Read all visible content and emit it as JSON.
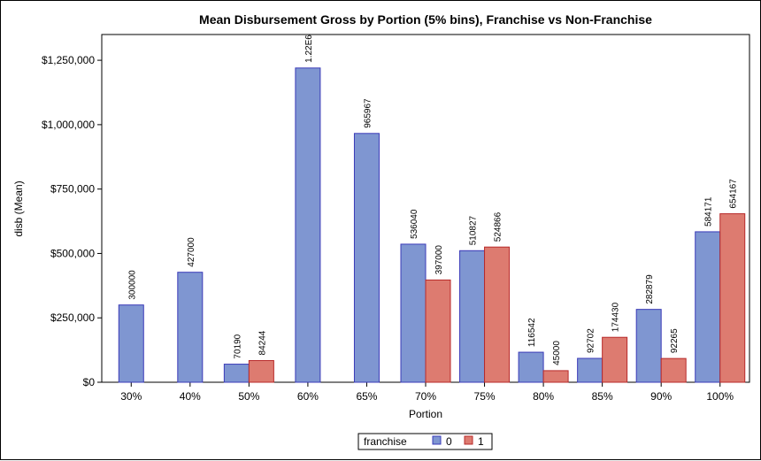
{
  "chart_data": {
    "type": "bar",
    "title": "Mean Disbursement Gross by Portion (5% bins), Franchise vs Non-Franchise",
    "xlabel": "Portion",
    "ylabel": "disb (Mean)",
    "categories": [
      "30%",
      "40%",
      "50%",
      "60%",
      "65%",
      "70%",
      "75%",
      "80%",
      "85%",
      "90%",
      "100%"
    ],
    "ylim": [
      0,
      1350000
    ],
    "yticks": [
      0,
      250000,
      500000,
      750000,
      1000000,
      1250000
    ],
    "ytick_labels": [
      "$0",
      "$250,000",
      "$500,000",
      "$750,000",
      "$1,000,000",
      "$1,250,000"
    ],
    "grid": false,
    "legend": {
      "title": "franchise",
      "position": "bottom-center"
    },
    "series": [
      {
        "name": "0",
        "color": "#7f96d1",
        "edge_color": "#3a3ab8",
        "values": [
          300000,
          427000,
          70190,
          1220000,
          965967,
          536040,
          510827,
          116542,
          92702,
          282879,
          584171
        ],
        "labels": [
          "300000",
          "427000",
          "70190",
          "1.22E6",
          "965967",
          "536040",
          "510827",
          "116542",
          "92702",
          "282879",
          "584171"
        ]
      },
      {
        "name": "1",
        "color": "#dd7b70",
        "edge_color": "#b82a2a",
        "values": [
          null,
          null,
          84244,
          null,
          null,
          397000,
          524866,
          45000,
          174430,
          92265,
          654167
        ],
        "labels": [
          "",
          "",
          "84244",
          "",
          "",
          "397000",
          "524866",
          "45000",
          "174430",
          "92265",
          "654167"
        ]
      }
    ]
  }
}
